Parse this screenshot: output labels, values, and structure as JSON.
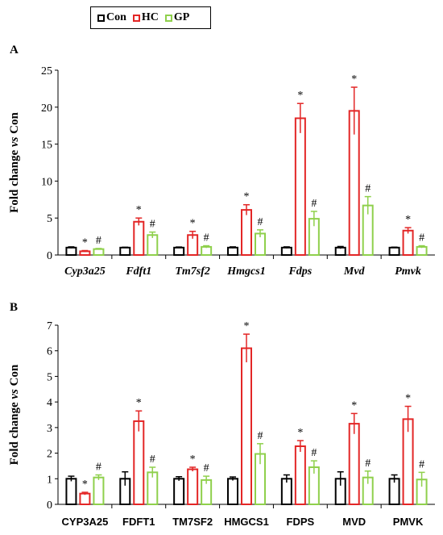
{
  "legend": {
    "items": [
      {
        "label": "Con",
        "color": "#000000"
      },
      {
        "label": "HC",
        "color": "#e32626"
      },
      {
        "label": "GP",
        "color": "#8fd04c"
      }
    ]
  },
  "chart_data": [
    {
      "panel": "A",
      "type": "bar",
      "ylabel": "Fold change vs Con",
      "ylabel_parts": [
        "Fold change ",
        "vs",
        " Con"
      ],
      "ylim": [
        0,
        25
      ],
      "yticks": [
        0,
        5,
        10,
        15,
        20,
        25
      ],
      "categories": [
        "Cyp3a25",
        "Fdft1",
        "Tm7sf2",
        "Hmgcs1",
        "Fdps",
        "Mvd",
        "Pmvk"
      ],
      "category_style": "italic",
      "series": [
        {
          "name": "Con",
          "color": "#000000",
          "values": [
            1.0,
            1.0,
            1.0,
            1.0,
            1.0,
            1.0,
            1.0
          ],
          "errors": [
            0.1,
            0.05,
            0.08,
            0.1,
            0.1,
            0.15,
            0.06
          ],
          "marks": [
            "",
            "",
            "",
            "",
            "",
            "",
            ""
          ]
        },
        {
          "name": "HC",
          "color": "#e32626",
          "values": [
            0.5,
            4.5,
            2.7,
            6.1,
            18.5,
            19.5,
            3.3
          ],
          "errors": [
            0.1,
            0.5,
            0.5,
            0.7,
            2.0,
            3.2,
            0.4
          ],
          "marks": [
            "*",
            "*",
            "*",
            "*",
            "*",
            "*",
            "*"
          ]
        },
        {
          "name": "GP",
          "color": "#8fd04c",
          "values": [
            0.8,
            2.7,
            1.1,
            2.9,
            4.9,
            6.7,
            1.1
          ],
          "errors": [
            0.08,
            0.4,
            0.15,
            0.5,
            1.0,
            1.2,
            0.15
          ],
          "marks": [
            "#",
            "#",
            "#",
            "#",
            "#",
            "#",
            "#"
          ]
        }
      ]
    },
    {
      "panel": "B",
      "type": "bar",
      "ylabel": "Fold change vs Con",
      "ylabel_parts": [
        "Fold change ",
        "vs",
        " Con"
      ],
      "ylim": [
        0,
        7
      ],
      "yticks": [
        0,
        1,
        2,
        3,
        4,
        5,
        6,
        7
      ],
      "categories": [
        "CYP3A25",
        "FDFT1",
        "TM7SF2",
        "HMGCS1",
        "FDPS",
        "MVD",
        "PMVK"
      ],
      "category_style": "sans",
      "series": [
        {
          "name": "Con",
          "color": "#000000",
          "values": [
            1.0,
            1.0,
            1.0,
            1.0,
            1.0,
            1.0,
            1.0
          ],
          "errors": [
            0.1,
            0.27,
            0.08,
            0.07,
            0.15,
            0.27,
            0.15
          ],
          "marks": [
            "",
            "",
            "",
            "",
            "",
            "",
            ""
          ]
        },
        {
          "name": "HC",
          "color": "#e32626",
          "values": [
            0.42,
            3.25,
            1.37,
            6.1,
            2.27,
            3.15,
            3.33
          ],
          "errors": [
            0.05,
            0.4,
            0.08,
            0.55,
            0.22,
            0.4,
            0.5
          ],
          "marks": [
            "*",
            "*",
            "*",
            "*",
            "*",
            "*",
            "*"
          ]
        },
        {
          "name": "GP",
          "color": "#8fd04c",
          "values": [
            1.05,
            1.25,
            0.95,
            1.97,
            1.45,
            1.05,
            0.97
          ],
          "errors": [
            0.1,
            0.2,
            0.15,
            0.4,
            0.25,
            0.25,
            0.28
          ],
          "marks": [
            "#",
            "#",
            "#",
            "#",
            "#",
            "#",
            "#"
          ]
        }
      ]
    }
  ]
}
